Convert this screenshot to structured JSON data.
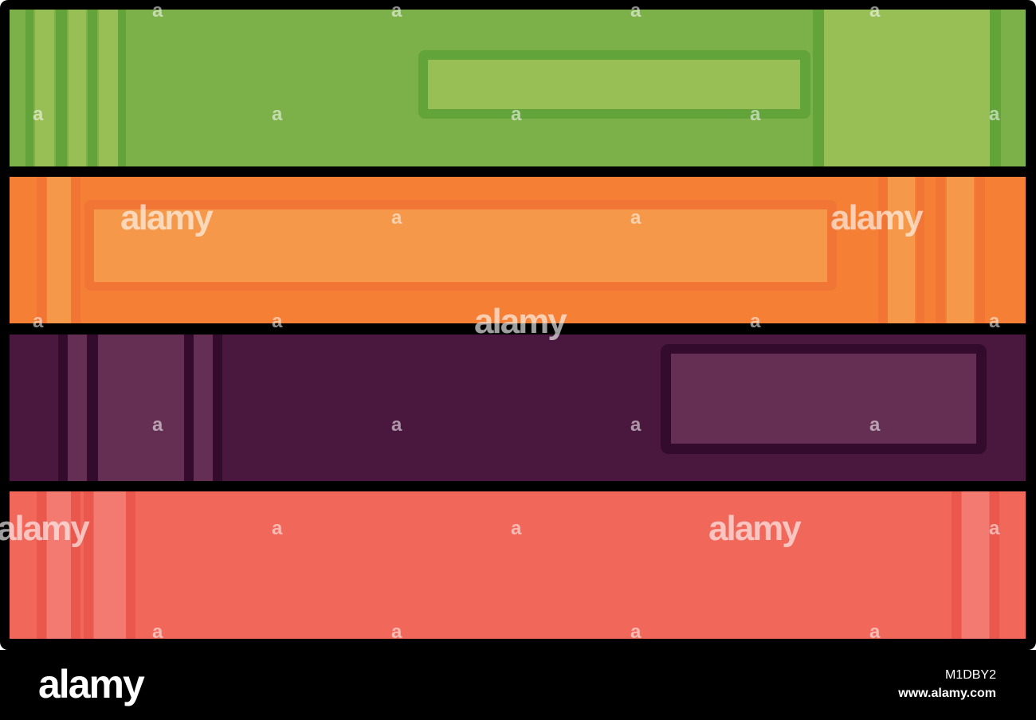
{
  "image": {
    "subject": "stack of four books",
    "colors": {
      "outline": "#000000",
      "green_cover": "#7CB14A",
      "green_light": "#98BE56",
      "green_dark": "#62A33A",
      "orange_cover": "#F57F35",
      "orange_light": "#F6984A",
      "orange_dark": "#F17534",
      "purple_cover": "#4A183E",
      "purple_light": "#642F53",
      "purple_dark": "#330B2C",
      "coral_cover": "#F1675A",
      "coral_light": "#F27A71",
      "coral_dark": "#EA574D"
    }
  },
  "watermark": {
    "logo": "alamy",
    "mark": "a"
  },
  "footer": {
    "logo": "alamy",
    "image_id": "M1DBY2",
    "url": "www.alamy.com"
  }
}
